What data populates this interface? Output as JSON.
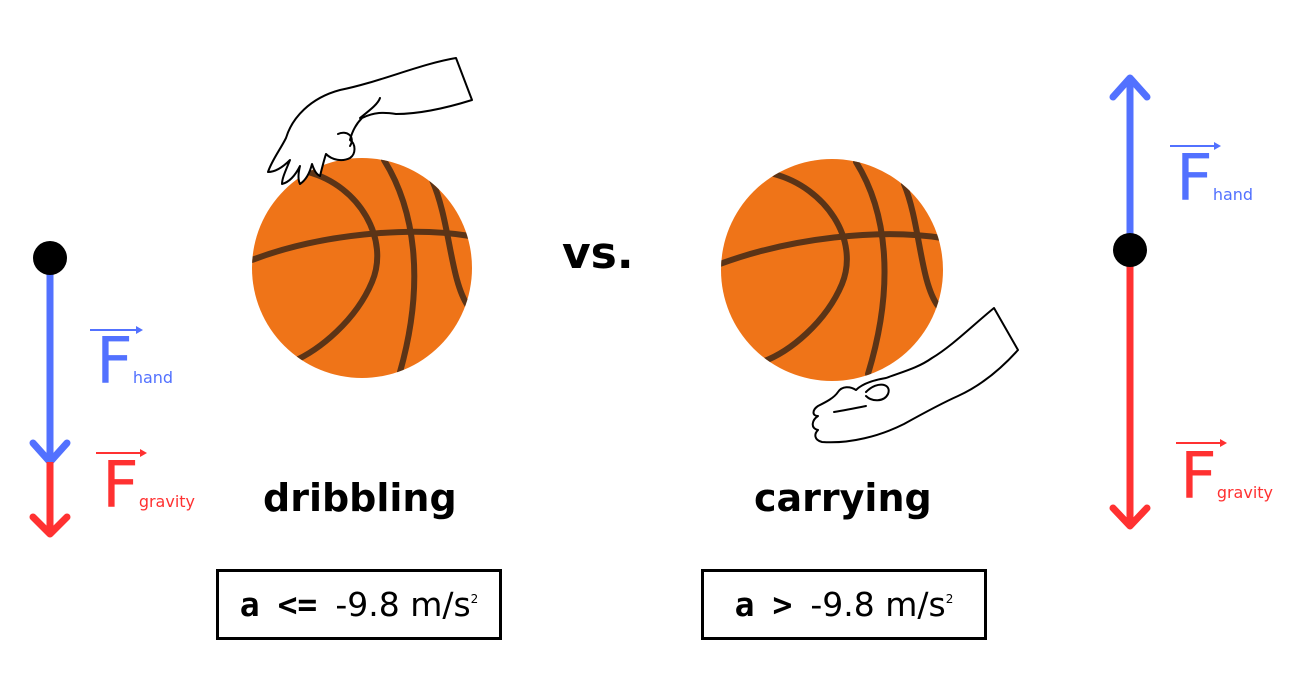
{
  "left": {
    "caption": "dribbling",
    "equation": {
      "variable": "a",
      "operator": "<=",
      "value": "-9.8 m/s",
      "exponent": "2"
    },
    "forces": [
      {
        "symbol": "F",
        "subscript": "hand",
        "direction": "down",
        "color": "#5271ff"
      },
      {
        "symbol": "F",
        "subscript": "gravity",
        "direction": "down",
        "color": "#ff3131"
      }
    ]
  },
  "center": {
    "separator": "vs."
  },
  "right": {
    "caption": "carrying",
    "equation": {
      "variable": "a",
      "operator": ">",
      "value": "-9.8 m/s",
      "exponent": "2"
    },
    "forces": [
      {
        "symbol": "F",
        "subscript": "hand",
        "direction": "up",
        "color": "#5271ff"
      },
      {
        "symbol": "F",
        "subscript": "gravity",
        "direction": "down",
        "color": "#ff3131"
      }
    ]
  },
  "colors": {
    "ball": "#ef7418",
    "seams": "#5b3417",
    "hand_force": "#5271ff",
    "gravity_force": "#ff3131"
  }
}
